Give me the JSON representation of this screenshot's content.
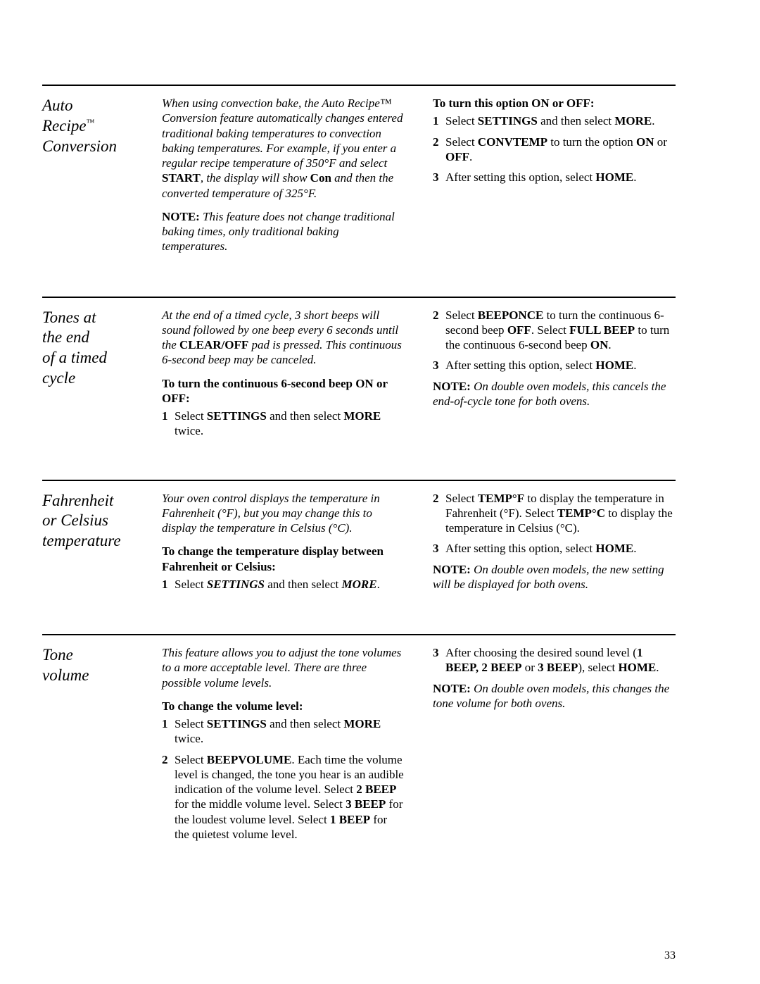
{
  "page_number": "33",
  "sections": {
    "s1": {
      "title_l1": "Auto",
      "title_l2": "Recipe",
      "title_tm": "™",
      "title_l3": "Conversion",
      "intro_part_a": "When using convection bake, the Auto Recipe™ Conversion feature automatically changes entered traditional baking temperatures to convection baking temperatures. For example, if you enter a regular recipe temperature of 350°F and select ",
      "intro_strong1": "START",
      "intro_part_b": ", the display will show ",
      "intro_strong2": "Con",
      "intro_part_c": " and then the converted temperature of 325°F.",
      "note1_lead": "NOTE:",
      "note1_body": "This feature does not change traditional baking times, only traditional baking temperatures.",
      "subhead": "To turn this option ON or OFF:",
      "step1_a": "Select ",
      "step1_b": "SETTINGS",
      "step1_c": " and then select ",
      "step1_d": "MORE",
      "step1_e": ".",
      "step2_a": "Select ",
      "step2_b": "CONVTEMP",
      "step2_c": " to turn the option ",
      "step2_d": "ON",
      "step2_e": " or ",
      "step2_f": "OFF",
      "step2_g": ".",
      "step3_a": "After setting this option, select ",
      "step3_b": "HOME",
      "step3_c": "."
    },
    "s2": {
      "title_l1": "Tones at",
      "title_l2": "the end",
      "title_l3": "of a timed",
      "title_l4": "cycle",
      "intro_a": "At the end of a timed cycle, 3 short beeps will sound followed by one beep every 6 seconds until the ",
      "intro_b": "CLEAR/OFF",
      "intro_c": " pad is pressed. This continuous 6-second beep may be canceled.",
      "subhead": "To turn the continuous 6-second beep ON or OFF:",
      "step1_a": "Select ",
      "step1_b": "SETTINGS",
      "step1_c": " and then select ",
      "step1_d": "MORE",
      "step1_e": " twice.",
      "r_step2_a": "Select ",
      "r_step2_b": "BEEPONCE",
      "r_step2_c": " to turn the continuous 6-second beep ",
      "r_step2_d": "OFF",
      "r_step2_e": ". Select ",
      "r_step2_f": "FULL BEEP",
      "r_step2_g": " to turn the continuous 6-second beep ",
      "r_step2_h": "ON",
      "r_step2_i": ".",
      "r_step3_a": "After setting this option, select ",
      "r_step3_b": "HOME",
      "r_step3_c": ".",
      "note_lead": "NOTE:",
      "note_body": "On double oven models, this cancels the end-of-cycle tone for both ovens."
    },
    "s3": {
      "title_l1": "Fahrenheit",
      "title_l2": "or Celsius",
      "title_l3": "temperature",
      "intro": "Your oven control displays the temperature in Fahrenheit (°F), but you may change this to display the temperature in Celsius (°C).",
      "subhead": "To change the temperature display between Fahrenheit or Celsius:",
      "step1_a": "Select ",
      "step1_b": "SETTINGS",
      "step1_c": " and then select ",
      "step1_d": "MORE",
      "step1_e": ".",
      "r_step2_a": "Select ",
      "r_step2_b": "TEMP°F",
      "r_step2_c": " to display the temperature in Fahrenheit (°F). Select ",
      "r_step2_d": "TEMP°C",
      "r_step2_e": " to display the temperature in Celsius (°C).",
      "r_step3_a": "After setting this option, select ",
      "r_step3_b": "HOME",
      "r_step3_c": ".",
      "note_lead": "NOTE:",
      "note_body": "On double oven models, the new setting will be displayed for both ovens."
    },
    "s4": {
      "title_l1": "Tone",
      "title_l2": "volume",
      "intro": "This feature allows you to adjust the tone volumes to a more acceptable level. There are three possible volume levels.",
      "subhead": "To change the volume level:",
      "step1_a": "Select ",
      "step1_b": "SETTINGS",
      "step1_c": " and then select ",
      "step1_d": "MORE",
      "step1_e": " twice.",
      "step2_a": "Select ",
      "step2_b": "BEEPVOLUME",
      "step2_c": ". Each time the volume level is changed, the tone you hear is an audible indication of the volume level. Select ",
      "step2_d": "2 BEEP",
      "step2_e": " for the middle volume level. Select ",
      "step2_f": "3 BEEP",
      "step2_g": " for the loudest volume level. Select ",
      "step2_h": "1 BEEP",
      "step2_i": " for the quietest volume level.",
      "r_step3_a": "After choosing the desired sound level (",
      "r_step3_b": "1 BEEP, 2 BEEP",
      "r_step3_c": " or ",
      "r_step3_d": "3 BEEP",
      "r_step3_e": "), select ",
      "r_step3_f": "HOME",
      "r_step3_g": ".",
      "note_lead": "NOTE:",
      "note_body": "On double oven models, this changes the tone volume for both ovens."
    }
  }
}
